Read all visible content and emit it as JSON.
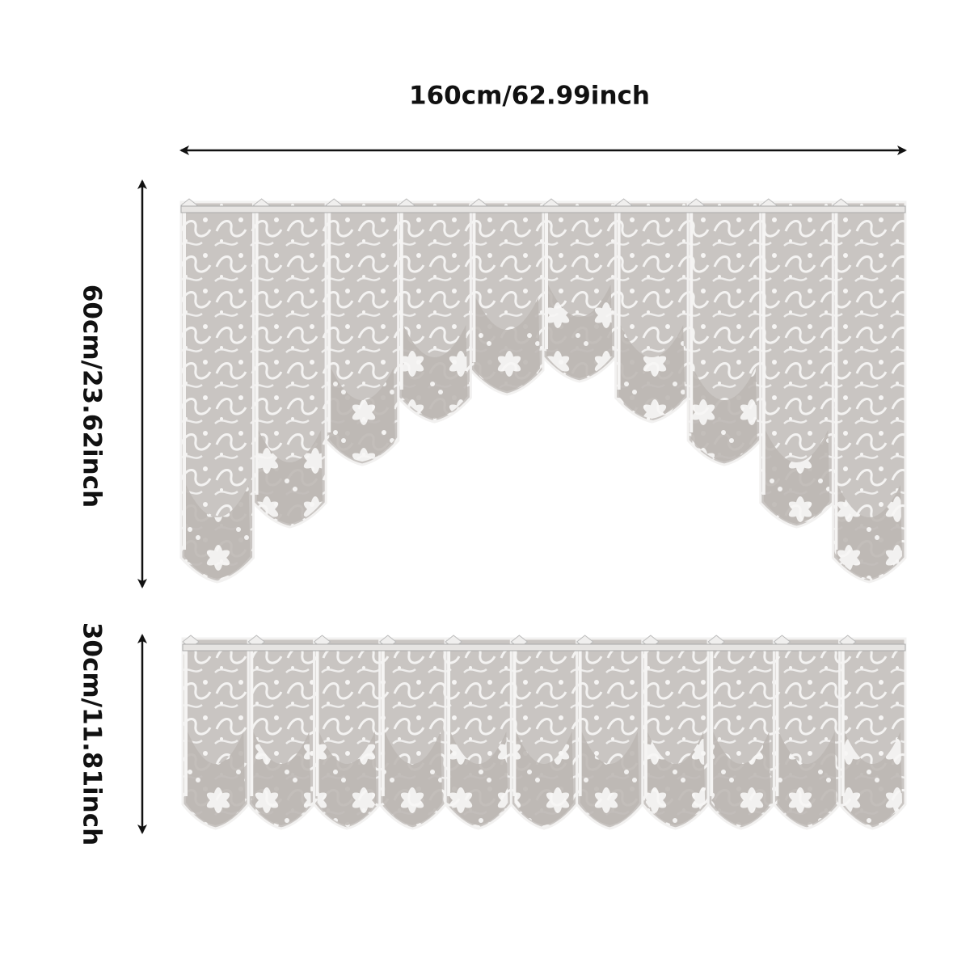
{
  "dimensions": {
    "width": "160cm/62.99inch",
    "swag_height": "60cm/23.62inch",
    "valance_height": "30cm/11.81inch"
  }
}
